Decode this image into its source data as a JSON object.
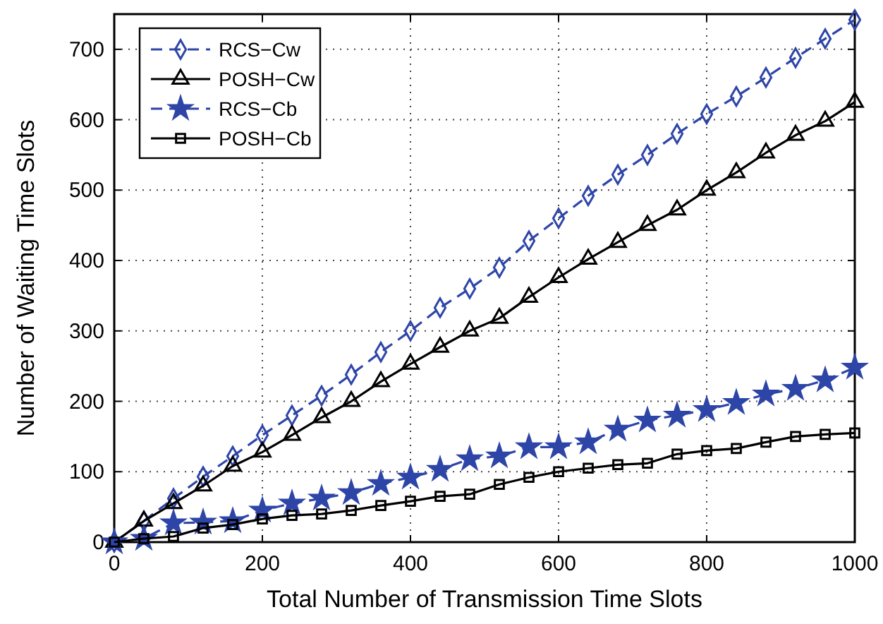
{
  "chart_data": {
    "type": "line",
    "xlabel": "Total Number of Transmission Time Slots",
    "ylabel": "Number of Waiting Time Slots",
    "x": [
      0,
      40,
      80,
      120,
      160,
      200,
      240,
      280,
      320,
      360,
      400,
      440,
      480,
      520,
      560,
      600,
      640,
      680,
      720,
      760,
      800,
      840,
      880,
      920,
      960,
      1000
    ],
    "xlim": [
      0,
      1000
    ],
    "xticks": [
      0,
      200,
      400,
      600,
      800,
      1000
    ],
    "ylim": [
      0,
      750
    ],
    "yticks": [
      0,
      100,
      200,
      300,
      400,
      500,
      600,
      700
    ],
    "grid": true,
    "legend": "top left",
    "series": [
      {
        "name": "RCS−Cw",
        "color": "#2e45a8",
        "marker": "diamond",
        "line_style": "dashed",
        "values": [
          0,
          30,
          62,
          93,
          122,
          152,
          180,
          208,
          238,
          270,
          300,
          333,
          360,
          390,
          428,
          460,
          492,
          522,
          550,
          580,
          608,
          633,
          660,
          688,
          715,
          742
        ]
      },
      {
        "name": "POSH−Cw",
        "color": "#000000",
        "marker": "triangle",
        "line_style": "solid",
        "values": [
          0,
          30,
          55,
          80,
          108,
          128,
          152,
          177,
          200,
          228,
          253,
          277,
          300,
          318,
          348,
          376,
          402,
          426,
          450,
          472,
          500,
          525,
          553,
          578,
          598,
          625
        ]
      },
      {
        "name": "RCS−Cb",
        "color": "#2e45a8",
        "marker": "star",
        "line_style": "dashed",
        "values": [
          0,
          5,
          27,
          28,
          30,
          45,
          55,
          62,
          70,
          83,
          92,
          103,
          118,
          122,
          135,
          135,
          142,
          160,
          173,
          180,
          188,
          198,
          210,
          218,
          230,
          248
        ]
      },
      {
        "name": "POSH−Cb",
        "color": "#000000",
        "marker": "square",
        "line_style": "solid",
        "values": [
          0,
          5,
          8,
          20,
          25,
          33,
          38,
          40,
          45,
          52,
          58,
          65,
          68,
          82,
          92,
          100,
          105,
          110,
          112,
          125,
          130,
          133,
          142,
          150,
          153,
          155
        ]
      }
    ]
  }
}
